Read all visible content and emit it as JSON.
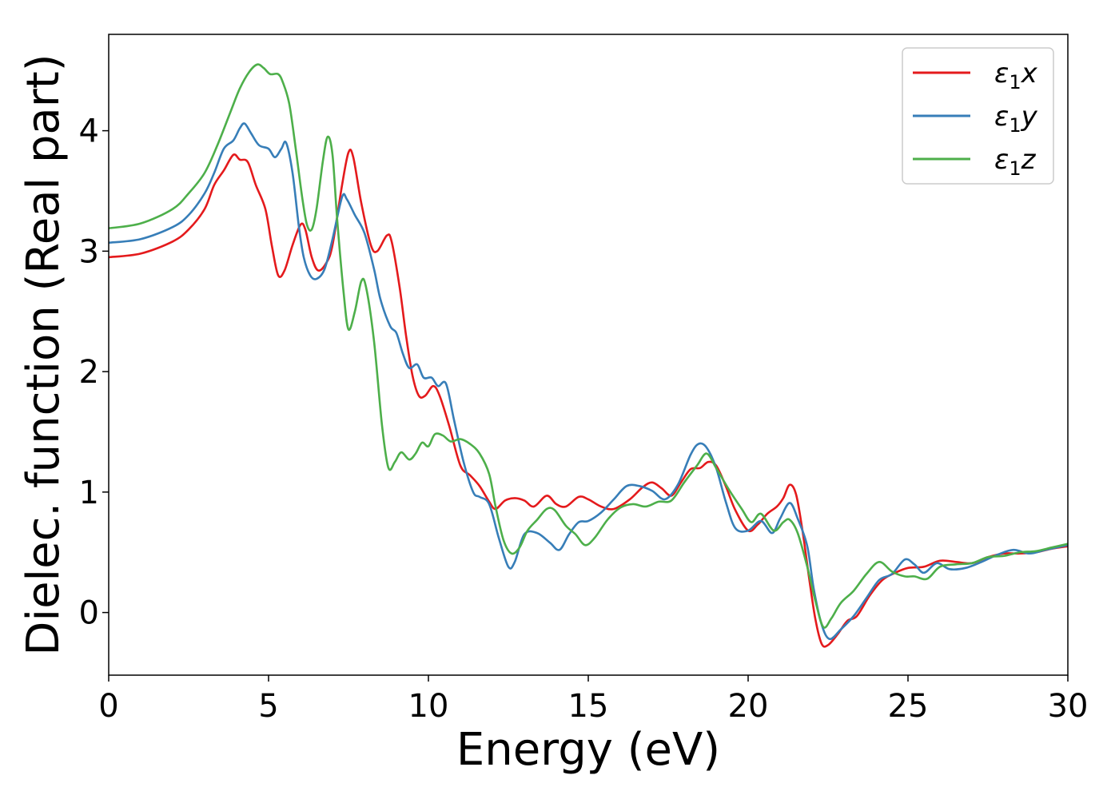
{
  "chart_data": {
    "type": "line",
    "xlabel": "Energy (eV)",
    "ylabel": "Dielec. function (Real part)",
    "xlim": [
      0,
      30
    ],
    "ylim": [
      -0.52,
      4.8
    ],
    "xticks": [
      0,
      5,
      10,
      15,
      20,
      25,
      30
    ],
    "yticks": [
      0,
      1,
      2,
      3,
      4
    ],
    "legend_position": "top-right",
    "grid": false,
    "series": [
      {
        "name": "ε1x",
        "legend_main": "ε",
        "legend_sub": "1",
        "legend_suffix": "x",
        "color": "#e41a1c",
        "points": [
          [
            0,
            2.95
          ],
          [
            1,
            2.98
          ],
          [
            2,
            3.08
          ],
          [
            2.5,
            3.18
          ],
          [
            3,
            3.35
          ],
          [
            3.3,
            3.55
          ],
          [
            3.6,
            3.67
          ],
          [
            3.9,
            3.8
          ],
          [
            4.1,
            3.76
          ],
          [
            4.35,
            3.74
          ],
          [
            4.6,
            3.55
          ],
          [
            4.9,
            3.35
          ],
          [
            5.1,
            3.05
          ],
          [
            5.3,
            2.8
          ],
          [
            5.5,
            2.84
          ],
          [
            5.75,
            3.05
          ],
          [
            6.0,
            3.22
          ],
          [
            6.15,
            3.18
          ],
          [
            6.35,
            2.95
          ],
          [
            6.55,
            2.84
          ],
          [
            6.8,
            2.9
          ],
          [
            7.0,
            3.05
          ],
          [
            7.3,
            3.55
          ],
          [
            7.5,
            3.82
          ],
          [
            7.65,
            3.78
          ],
          [
            7.9,
            3.4
          ],
          [
            8.2,
            3.05
          ],
          [
            8.4,
            3.0
          ],
          [
            8.7,
            3.13
          ],
          [
            8.85,
            3.08
          ],
          [
            9.1,
            2.7
          ],
          [
            9.3,
            2.3
          ],
          [
            9.5,
            1.97
          ],
          [
            9.7,
            1.8
          ],
          [
            9.9,
            1.8
          ],
          [
            10.15,
            1.88
          ],
          [
            10.35,
            1.8
          ],
          [
            10.65,
            1.55
          ],
          [
            11.0,
            1.22
          ],
          [
            11.3,
            1.14
          ],
          [
            11.6,
            1.05
          ],
          [
            11.9,
            0.92
          ],
          [
            12.1,
            0.86
          ],
          [
            12.4,
            0.93
          ],
          [
            12.7,
            0.95
          ],
          [
            13.0,
            0.93
          ],
          [
            13.3,
            0.88
          ],
          [
            13.7,
            0.97
          ],
          [
            14.0,
            0.9
          ],
          [
            14.3,
            0.88
          ],
          [
            14.7,
            0.96
          ],
          [
            15.0,
            0.94
          ],
          [
            15.4,
            0.88
          ],
          [
            15.8,
            0.86
          ],
          [
            16.3,
            0.94
          ],
          [
            16.7,
            1.04
          ],
          [
            17.0,
            1.08
          ],
          [
            17.3,
            1.03
          ],
          [
            17.6,
            0.97
          ],
          [
            17.9,
            1.08
          ],
          [
            18.2,
            1.19
          ],
          [
            18.5,
            1.2
          ],
          [
            18.75,
            1.25
          ],
          [
            19.0,
            1.22
          ],
          [
            19.3,
            1.05
          ],
          [
            19.6,
            0.85
          ],
          [
            20.0,
            0.68
          ],
          [
            20.3,
            0.73
          ],
          [
            20.6,
            0.82
          ],
          [
            20.9,
            0.88
          ],
          [
            21.1,
            0.95
          ],
          [
            21.3,
            1.06
          ],
          [
            21.5,
            0.98
          ],
          [
            21.7,
            0.68
          ],
          [
            21.9,
            0.3
          ],
          [
            22.1,
            -0.05
          ],
          [
            22.3,
            -0.26
          ],
          [
            22.5,
            -0.27
          ],
          [
            22.8,
            -0.18
          ],
          [
            23.1,
            -0.07
          ],
          [
            23.4,
            -0.03
          ],
          [
            23.8,
            0.14
          ],
          [
            24.2,
            0.27
          ],
          [
            24.6,
            0.33
          ],
          [
            25.0,
            0.37
          ],
          [
            25.5,
            0.38
          ],
          [
            26.0,
            0.43
          ],
          [
            26.5,
            0.42
          ],
          [
            27.0,
            0.41
          ],
          [
            27.5,
            0.46
          ],
          [
            28.0,
            0.49
          ],
          [
            28.5,
            0.49
          ],
          [
            29.0,
            0.5
          ],
          [
            29.5,
            0.53
          ],
          [
            30.0,
            0.55
          ]
        ]
      },
      {
        "name": "ε1y",
        "legend_main": "ε",
        "legend_sub": "1",
        "legend_suffix": "y",
        "color": "#377eb8",
        "points": [
          [
            0,
            3.07
          ],
          [
            1,
            3.1
          ],
          [
            2,
            3.2
          ],
          [
            2.5,
            3.3
          ],
          [
            3,
            3.48
          ],
          [
            3.3,
            3.65
          ],
          [
            3.6,
            3.85
          ],
          [
            3.9,
            3.92
          ],
          [
            4.1,
            4.02
          ],
          [
            4.25,
            4.06
          ],
          [
            4.45,
            3.98
          ],
          [
            4.7,
            3.88
          ],
          [
            5.0,
            3.85
          ],
          [
            5.2,
            3.78
          ],
          [
            5.4,
            3.85
          ],
          [
            5.55,
            3.9
          ],
          [
            5.75,
            3.65
          ],
          [
            5.95,
            3.2
          ],
          [
            6.1,
            2.95
          ],
          [
            6.3,
            2.8
          ],
          [
            6.5,
            2.77
          ],
          [
            6.75,
            2.85
          ],
          [
            7.0,
            3.1
          ],
          [
            7.3,
            3.45
          ],
          [
            7.45,
            3.43
          ],
          [
            7.7,
            3.3
          ],
          [
            8.0,
            3.15
          ],
          [
            8.3,
            2.85
          ],
          [
            8.5,
            2.6
          ],
          [
            8.8,
            2.38
          ],
          [
            9.0,
            2.32
          ],
          [
            9.2,
            2.15
          ],
          [
            9.4,
            2.03
          ],
          [
            9.65,
            2.06
          ],
          [
            9.85,
            1.95
          ],
          [
            10.1,
            1.95
          ],
          [
            10.3,
            1.88
          ],
          [
            10.55,
            1.9
          ],
          [
            10.8,
            1.6
          ],
          [
            11.1,
            1.25
          ],
          [
            11.4,
            1.0
          ],
          [
            11.6,
            0.96
          ],
          [
            11.9,
            0.9
          ],
          [
            12.2,
            0.62
          ],
          [
            12.5,
            0.38
          ],
          [
            12.7,
            0.42
          ],
          [
            13.0,
            0.65
          ],
          [
            13.4,
            0.66
          ],
          [
            13.8,
            0.58
          ],
          [
            14.1,
            0.52
          ],
          [
            14.4,
            0.65
          ],
          [
            14.7,
            0.75
          ],
          [
            15.0,
            0.76
          ],
          [
            15.4,
            0.83
          ],
          [
            15.8,
            0.94
          ],
          [
            16.2,
            1.05
          ],
          [
            16.6,
            1.05
          ],
          [
            17.0,
            1.01
          ],
          [
            17.4,
            0.94
          ],
          [
            17.8,
            1.06
          ],
          [
            18.2,
            1.31
          ],
          [
            18.45,
            1.4
          ],
          [
            18.7,
            1.37
          ],
          [
            19.0,
            1.2
          ],
          [
            19.3,
            0.92
          ],
          [
            19.6,
            0.7
          ],
          [
            20.0,
            0.68
          ],
          [
            20.4,
            0.76
          ],
          [
            20.75,
            0.66
          ],
          [
            21.0,
            0.78
          ],
          [
            21.3,
            0.91
          ],
          [
            21.55,
            0.78
          ],
          [
            21.85,
            0.55
          ],
          [
            22.05,
            0.2
          ],
          [
            22.3,
            -0.1
          ],
          [
            22.55,
            -0.22
          ],
          [
            22.9,
            -0.14
          ],
          [
            23.3,
            -0.03
          ],
          [
            23.7,
            0.12
          ],
          [
            24.1,
            0.27
          ],
          [
            24.5,
            0.32
          ],
          [
            24.9,
            0.44
          ],
          [
            25.2,
            0.4
          ],
          [
            25.5,
            0.33
          ],
          [
            25.9,
            0.41
          ],
          [
            26.3,
            0.36
          ],
          [
            26.8,
            0.37
          ],
          [
            27.3,
            0.42
          ],
          [
            27.8,
            0.48
          ],
          [
            28.3,
            0.52
          ],
          [
            28.8,
            0.49
          ],
          [
            29.3,
            0.52
          ],
          [
            30.0,
            0.56
          ]
        ]
      },
      {
        "name": "ε1z",
        "legend_main": "ε",
        "legend_sub": "1",
        "legend_suffix": "z",
        "color": "#4daf4a",
        "points": [
          [
            0,
            3.19
          ],
          [
            1,
            3.23
          ],
          [
            2,
            3.35
          ],
          [
            2.5,
            3.48
          ],
          [
            3,
            3.65
          ],
          [
            3.4,
            3.88
          ],
          [
            3.8,
            4.15
          ],
          [
            4.1,
            4.35
          ],
          [
            4.4,
            4.49
          ],
          [
            4.65,
            4.55
          ],
          [
            4.85,
            4.52
          ],
          [
            5.05,
            4.47
          ],
          [
            5.3,
            4.47
          ],
          [
            5.45,
            4.4
          ],
          [
            5.65,
            4.22
          ],
          [
            5.85,
            3.85
          ],
          [
            6.05,
            3.45
          ],
          [
            6.2,
            3.22
          ],
          [
            6.35,
            3.18
          ],
          [
            6.5,
            3.35
          ],
          [
            6.7,
            3.75
          ],
          [
            6.85,
            3.95
          ],
          [
            7.0,
            3.8
          ],
          [
            7.15,
            3.25
          ],
          [
            7.35,
            2.65
          ],
          [
            7.5,
            2.35
          ],
          [
            7.7,
            2.5
          ],
          [
            7.9,
            2.75
          ],
          [
            8.05,
            2.7
          ],
          [
            8.3,
            2.25
          ],
          [
            8.55,
            1.55
          ],
          [
            8.75,
            1.2
          ],
          [
            8.95,
            1.25
          ],
          [
            9.15,
            1.33
          ],
          [
            9.4,
            1.27
          ],
          [
            9.6,
            1.32
          ],
          [
            9.8,
            1.41
          ],
          [
            10.0,
            1.38
          ],
          [
            10.2,
            1.48
          ],
          [
            10.45,
            1.47
          ],
          [
            10.7,
            1.42
          ],
          [
            11.0,
            1.44
          ],
          [
            11.3,
            1.4
          ],
          [
            11.6,
            1.32
          ],
          [
            11.9,
            1.15
          ],
          [
            12.1,
            0.88
          ],
          [
            12.35,
            0.6
          ],
          [
            12.6,
            0.49
          ],
          [
            12.85,
            0.54
          ],
          [
            13.1,
            0.68
          ],
          [
            13.4,
            0.77
          ],
          [
            13.7,
            0.86
          ],
          [
            13.95,
            0.85
          ],
          [
            14.3,
            0.72
          ],
          [
            14.6,
            0.65
          ],
          [
            14.9,
            0.56
          ],
          [
            15.2,
            0.62
          ],
          [
            15.6,
            0.77
          ],
          [
            16.0,
            0.87
          ],
          [
            16.4,
            0.9
          ],
          [
            16.8,
            0.88
          ],
          [
            17.2,
            0.92
          ],
          [
            17.6,
            0.93
          ],
          [
            18.0,
            1.08
          ],
          [
            18.4,
            1.22
          ],
          [
            18.7,
            1.32
          ],
          [
            19.0,
            1.2
          ],
          [
            19.4,
            1.02
          ],
          [
            19.8,
            0.86
          ],
          [
            20.1,
            0.75
          ],
          [
            20.4,
            0.82
          ],
          [
            20.8,
            0.68
          ],
          [
            21.1,
            0.75
          ],
          [
            21.3,
            0.77
          ],
          [
            21.55,
            0.66
          ],
          [
            21.85,
            0.38
          ],
          [
            22.1,
            0.1
          ],
          [
            22.35,
            -0.12
          ],
          [
            22.6,
            -0.05
          ],
          [
            22.9,
            0.08
          ],
          [
            23.3,
            0.18
          ],
          [
            23.7,
            0.32
          ],
          [
            24.1,
            0.42
          ],
          [
            24.5,
            0.34
          ],
          [
            24.9,
            0.3
          ],
          [
            25.2,
            0.3
          ],
          [
            25.6,
            0.28
          ],
          [
            26.0,
            0.38
          ],
          [
            26.5,
            0.4
          ],
          [
            27.0,
            0.41
          ],
          [
            27.5,
            0.46
          ],
          [
            28.0,
            0.47
          ],
          [
            28.5,
            0.5
          ],
          [
            29.0,
            0.51
          ],
          [
            29.5,
            0.54
          ],
          [
            30.0,
            0.57
          ]
        ]
      }
    ]
  }
}
